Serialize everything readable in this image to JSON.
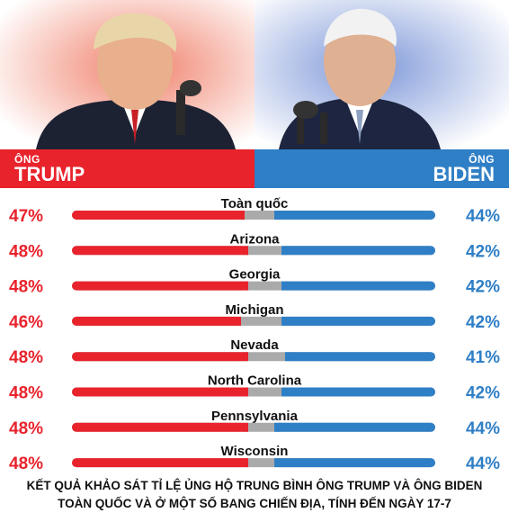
{
  "candidates": {
    "left": {
      "prefix": "ÔNG",
      "name": "TRUMP",
      "color": "#e8232c"
    },
    "right": {
      "prefix": "ÔNG",
      "name": "BIDEN",
      "color": "#2f7fc6"
    },
    "undecided_color": "#aaaaaa"
  },
  "chart_data": {
    "type": "bar",
    "categories": [
      "Toàn quốc",
      "Arizona",
      "Georgia",
      "Michigan",
      "Nevada",
      "North Carolina",
      "Pennsylvania",
      "Wisconsin"
    ],
    "series": [
      {
        "name": "TRUMP",
        "values": [
          47,
          48,
          48,
          46,
          48,
          48,
          48,
          48
        ],
        "labels": [
          "47%",
          "48%",
          "48%",
          "46%",
          "48%",
          "48%",
          "48%",
          "48%"
        ]
      },
      {
        "name": "BIDEN",
        "values": [
          44,
          42,
          42,
          42,
          41,
          42,
          44,
          44
        ],
        "labels": [
          "44%",
          "42%",
          "42%",
          "42%",
          "41%",
          "42%",
          "44%",
          "44%"
        ]
      }
    ],
    "ylim": [
      0,
      100
    ]
  },
  "caption": {
    "line1": "KẾT QUẢ KHẢO SÁT TỈ LỆ ỦNG HỘ TRUNG BÌNH ÔNG TRUMP VÀ ÔNG BIDEN",
    "line2": "TOÀN QUỐC VÀ Ở MỘT SỐ BANG CHIẾN ĐỊA, TÍNH ĐẾN NGÀY 17-7"
  }
}
